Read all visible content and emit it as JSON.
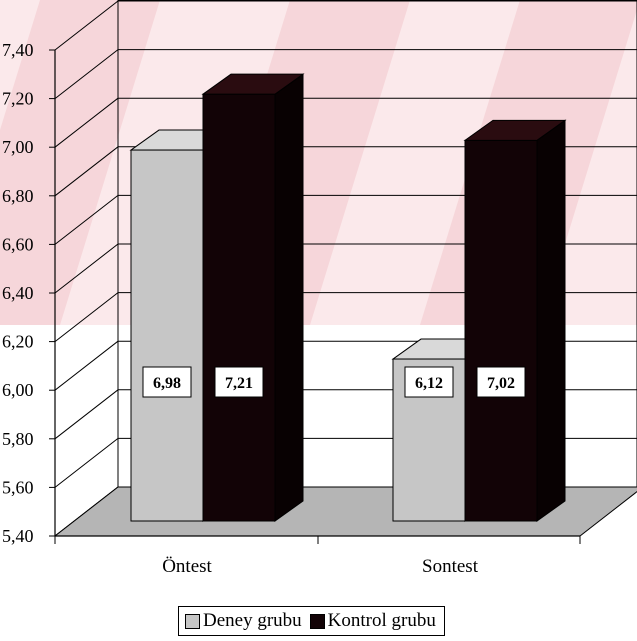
{
  "chart_data": {
    "type": "bar",
    "categories": [
      "Öntest",
      "Sontest"
    ],
    "series": [
      {
        "name": "Deney grubu",
        "values": [
          6.98,
          6.12
        ],
        "labels": [
          "6,98",
          "6,12"
        ]
      },
      {
        "name": "Kontrol grubu",
        "values": [
          7.21,
          7.02
        ],
        "labels": [
          "7,21",
          "7,02"
        ]
      }
    ],
    "ylim": [
      5.4,
      7.4
    ],
    "yticks": [
      5.4,
      5.6,
      5.8,
      6.0,
      6.2,
      6.4,
      6.6,
      6.8,
      7.0,
      7.2,
      7.4
    ],
    "ytick_labels": [
      "5,40",
      "5,60",
      "5,80",
      "6,00",
      "6,20",
      "6,40",
      "6,60",
      "6,80",
      "7,00",
      "7,20",
      "7,40"
    ],
    "grid": true,
    "legend_position": "bottom",
    "three_d": true,
    "colors": {
      "deney_front": "#c6c6c6",
      "deney_top": "#d9d9d9",
      "deney_side": "#a9a9a9",
      "kontrol_front": "#120306",
      "kontrol_top": "#2a0c10",
      "kontrol_side": "#080102",
      "wall": "#ffffff",
      "floor": "#b5b5b5",
      "watermark": "#f2c6cc"
    }
  },
  "legend": {
    "items": [
      "Deney grubu",
      "Kontrol grubu"
    ]
  }
}
